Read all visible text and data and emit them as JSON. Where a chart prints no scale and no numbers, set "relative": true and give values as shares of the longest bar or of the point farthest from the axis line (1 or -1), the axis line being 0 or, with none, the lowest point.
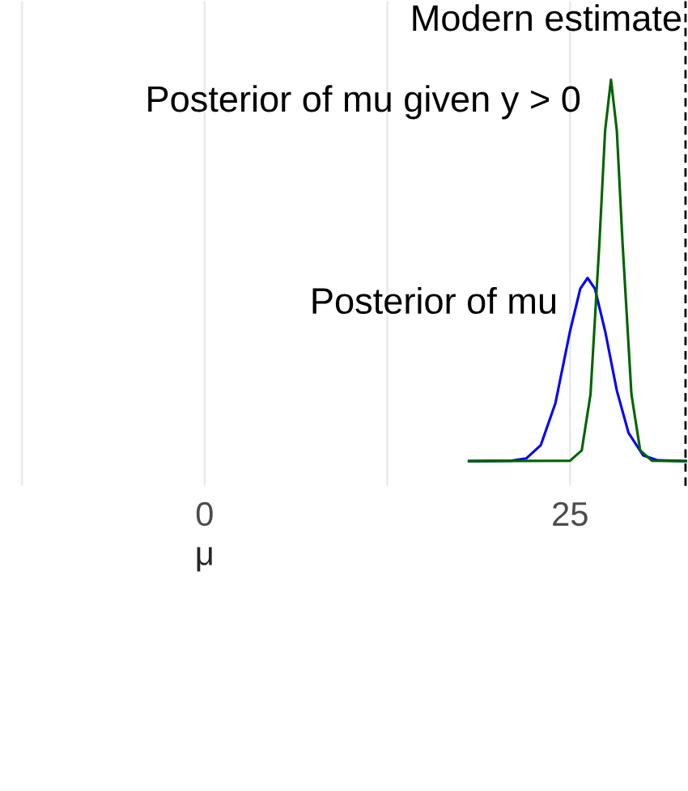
{
  "chart_data": {
    "type": "line",
    "relative": true,
    "xlabel": "μ",
    "xlim": [
      -12.5,
      33.1
    ],
    "xticks": [
      {
        "value": -12.5,
        "label": null
      },
      0,
      {
        "value": 12.5,
        "label": null
      },
      25
    ],
    "grid": "x",
    "legend": false,
    "marker": "none",
    "line_style": "solid",
    "series": [
      {
        "name": "Posterior of mu",
        "color": "#0000ff",
        "x": [
          18,
          21,
          22,
          23,
          24,
          25,
          25.7,
          26.2,
          26.7,
          27.4,
          28.2,
          29,
          30,
          31,
          33
        ],
        "values": [
          0,
          0.001,
          0.007,
          0.042,
          0.152,
          0.341,
          0.452,
          0.48,
          0.452,
          0.341,
          0.185,
          0.074,
          0.015,
          0.002,
          0
        ]
      },
      {
        "name": "Posterior of mu given y > 0",
        "color": "#006400",
        "x": [
          18,
          25,
          25.8,
          26.4,
          27,
          27.4,
          27.8,
          28.2,
          28.6,
          29.2,
          29.8,
          30.6,
          33
        ],
        "values": [
          0,
          0.001,
          0.028,
          0.175,
          0.566,
          0.867,
          1,
          0.867,
          0.566,
          0.175,
          0.028,
          0.001,
          0
        ]
      }
    ],
    "ref_lines": [
      {
        "axis": "x",
        "value": 32.9,
        "label": "Modern estimate",
        "color": "#000000",
        "line_style": "dashed"
      }
    ]
  }
}
